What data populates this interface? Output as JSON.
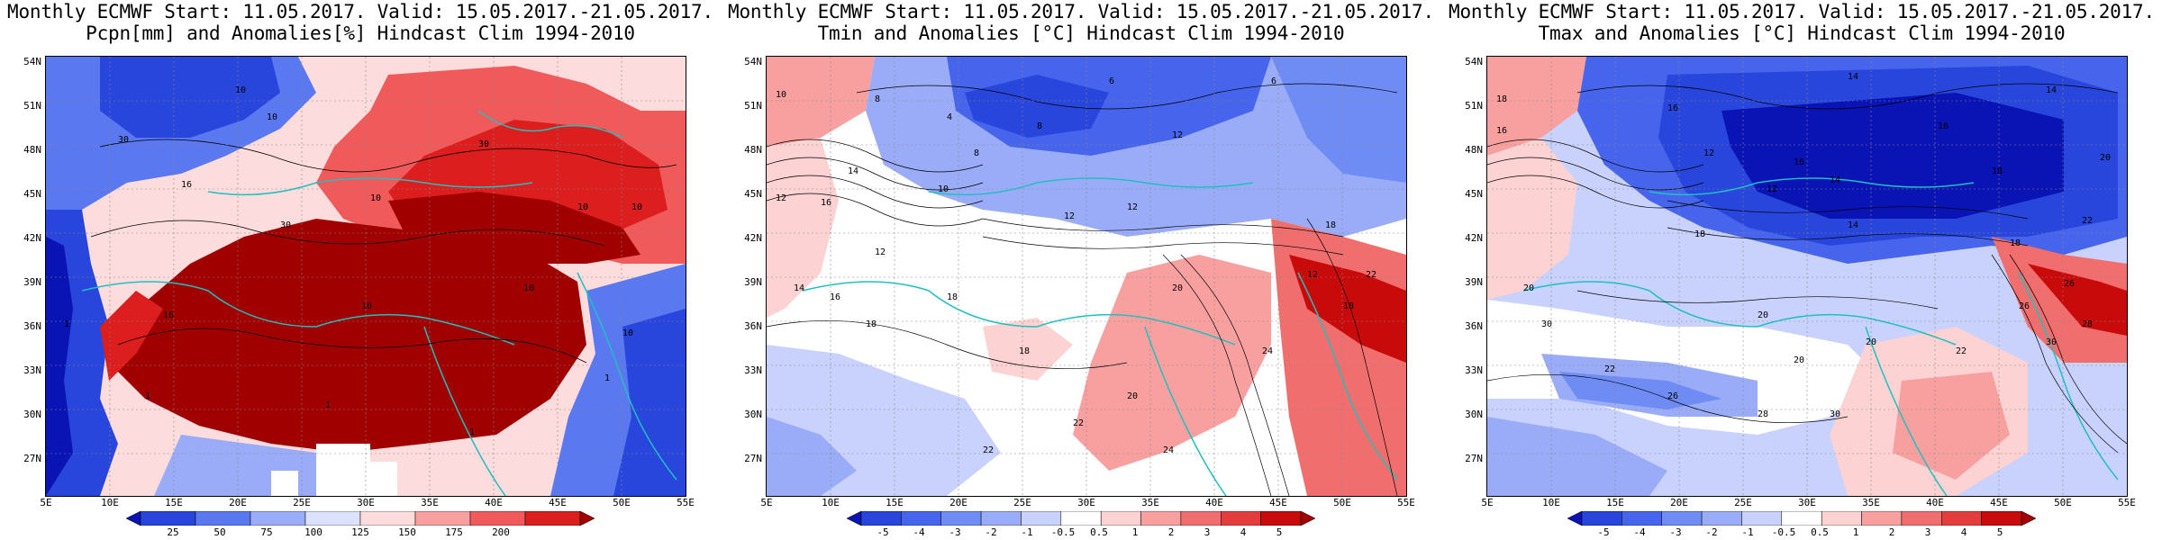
{
  "panels": [
    {
      "title_line1": "Monthly ECMWF Start: 11.05.2017. Valid: 15.05.2017.-21.05.2017.",
      "title_line2": "Pcpn[mm] and Anomalies[%] Hindcast Clim 1994-2010",
      "colorbar_labels": [
        "25",
        "50",
        "75",
        "100",
        "125",
        "150",
        "175",
        "200"
      ],
      "colorbar_colors": [
        "#0a14b4",
        "#2846dc",
        "#5a78f0",
        "#9aacf8",
        "#dce2fc",
        "#fcdcdc",
        "#f8a0a0",
        "#f05a5a",
        "#dc1e1e",
        "#a00000"
      ],
      "contour_labels": [
        "10",
        "30",
        "16",
        "10",
        "10",
        "30",
        "10",
        "10",
        "30",
        "10",
        "10",
        "1",
        "1",
        "16",
        "10",
        "1",
        "1",
        "1"
      ]
    },
    {
      "title_line1": "Monthly ECMWF Start: 11.05.2017. Valid: 15.05.2017.-21.05.2017.",
      "title_line2": "Tmin and Anomalies [°C] Hindcast Clim 1994-2010",
      "colorbar_labels": [
        "-5",
        "-4",
        "-3",
        "-2",
        "-1",
        "-0.5",
        "0.5",
        "1",
        "2",
        "3",
        "4",
        "5"
      ],
      "colorbar_colors": [
        "#0a14b4",
        "#2846dc",
        "#4664ec",
        "#6e8cf4",
        "#9aacf8",
        "#c8d2fc",
        "#ffffff",
        "#fcd2d2",
        "#f8a0a0",
        "#f06e6e",
        "#e43c3c",
        "#c80a0a",
        "#a00000"
      ],
      "contour_labels": [
        "6",
        "6",
        "10",
        "8",
        "4",
        "8",
        "12",
        "8",
        "12",
        "14",
        "16",
        "12",
        "18",
        "18",
        "10",
        "12",
        "12",
        "22",
        "20",
        "22",
        "24",
        "24",
        "18",
        "18",
        "20",
        "22",
        "12",
        "14",
        "16",
        "18"
      ]
    },
    {
      "title_line1": "Monthly ECMWF Start: 11.05.2017. Valid: 15.05.2017.-21.05.2017.",
      "title_line2": "Tmax and Anomalies [°C] Hindcast Clim 1994-2010",
      "colorbar_labels": [
        "-5",
        "-4",
        "-3",
        "-2",
        "-1",
        "-0.5",
        "0.5",
        "1",
        "2",
        "3",
        "4",
        "5"
      ],
      "colorbar_colors": [
        "#0a14b4",
        "#2846dc",
        "#4664ec",
        "#6e8cf4",
        "#9aacf8",
        "#c8d2fc",
        "#ffffff",
        "#fcd2d2",
        "#f8a0a0",
        "#f06e6e",
        "#e43c3c",
        "#c80a0a",
        "#a00000"
      ],
      "contour_labels": [
        "14",
        "14",
        "16",
        "16",
        "18",
        "16",
        "12",
        "16",
        "14",
        "18",
        "20",
        "22",
        "18",
        "18",
        "14",
        "20",
        "20",
        "22",
        "26",
        "26",
        "28",
        "30",
        "20",
        "26",
        "28",
        "22",
        "30",
        "30",
        "20",
        "12"
      ]
    }
  ],
  "lat_labels": [
    "54N",
    "51N",
    "48N",
    "45N",
    "42N",
    "39N",
    "36N",
    "33N",
    "30N",
    "27N"
  ],
  "lon_labels": [
    "5E",
    "10E",
    "15E",
    "20E",
    "25E",
    "30E",
    "35E",
    "40E",
    "45E",
    "50E",
    "55E"
  ]
}
